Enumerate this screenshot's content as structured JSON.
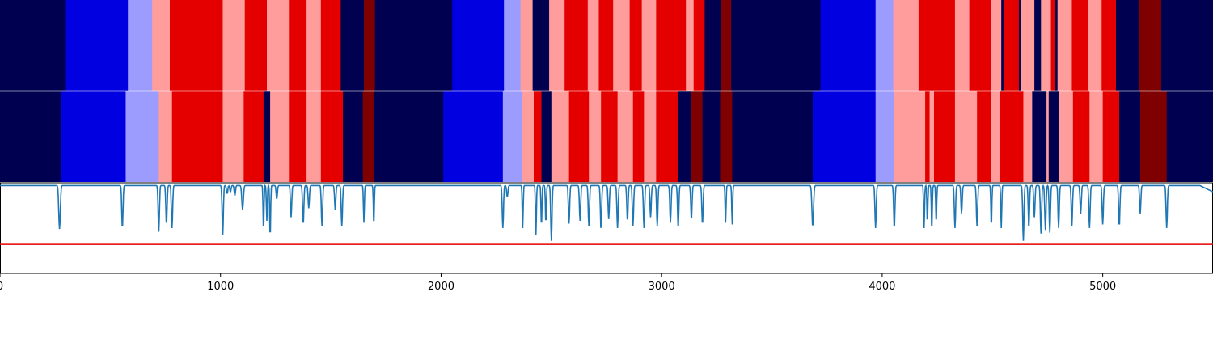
{
  "chart_data": {
    "type": "heatmap",
    "title": "",
    "xlabel": "",
    "ylabel": "",
    "xlim": [
      0,
      5500
    ],
    "xticks": [
      0,
      1000,
      2000,
      3000,
      4000,
      5000
    ],
    "xtick_labels": [
      "0",
      "1000",
      "2000",
      "3000",
      "4000",
      "5000"
    ],
    "grid": false,
    "legend": "none",
    "colors": {
      "navy": "#000050",
      "blue": "#0000e0",
      "lightblue": "#9c9cff",
      "pink": "#ff9c9c",
      "red": "#e50000",
      "darkred": "#7f0000",
      "line": "#1f77b4",
      "threshold": "#e50000"
    },
    "state_rows": [
      {
        "name": "",
        "segments": [
          {
            "start": 0,
            "end": 295,
            "state": "navy"
          },
          {
            "start": 295,
            "end": 580,
            "state": "blue"
          },
          {
            "start": 580,
            "end": 690,
            "state": "lightblue"
          },
          {
            "start": 690,
            "end": 770,
            "state": "pink"
          },
          {
            "start": 770,
            "end": 1010,
            "state": "red"
          },
          {
            "start": 1010,
            "end": 1110,
            "state": "pink"
          },
          {
            "start": 1110,
            "end": 1210,
            "state": "red"
          },
          {
            "start": 1210,
            "end": 1310,
            "state": "pink"
          },
          {
            "start": 1310,
            "end": 1390,
            "state": "red"
          },
          {
            "start": 1390,
            "end": 1455,
            "state": "pink"
          },
          {
            "start": 1455,
            "end": 1545,
            "state": "red"
          },
          {
            "start": 1545,
            "end": 1650,
            "state": "navy"
          },
          {
            "start": 1650,
            "end": 1700,
            "state": "darkred"
          },
          {
            "start": 1700,
            "end": 2050,
            "state": "navy"
          },
          {
            "start": 2050,
            "end": 2285,
            "state": "blue"
          },
          {
            "start": 2285,
            "end": 2360,
            "state": "lightblue"
          },
          {
            "start": 2360,
            "end": 2415,
            "state": "pink"
          },
          {
            "start": 2415,
            "end": 2490,
            "state": "navy"
          },
          {
            "start": 2490,
            "end": 2560,
            "state": "pink"
          },
          {
            "start": 2560,
            "end": 2665,
            "state": "red"
          },
          {
            "start": 2665,
            "end": 2715,
            "state": "pink"
          },
          {
            "start": 2715,
            "end": 2780,
            "state": "red"
          },
          {
            "start": 2780,
            "end": 2855,
            "state": "pink"
          },
          {
            "start": 2855,
            "end": 2910,
            "state": "red"
          },
          {
            "start": 2910,
            "end": 2975,
            "state": "pink"
          },
          {
            "start": 2975,
            "end": 3110,
            "state": "red"
          },
          {
            "start": 3110,
            "end": 3145,
            "state": "pink"
          },
          {
            "start": 3145,
            "end": 3195,
            "state": "red"
          },
          {
            "start": 3195,
            "end": 3270,
            "state": "navy"
          },
          {
            "start": 3270,
            "end": 3315,
            "state": "darkred"
          },
          {
            "start": 3315,
            "end": 3720,
            "state": "navy"
          },
          {
            "start": 3720,
            "end": 3970,
            "state": "blue"
          },
          {
            "start": 3970,
            "end": 4050,
            "state": "lightblue"
          },
          {
            "start": 4050,
            "end": 4165,
            "state": "pink"
          },
          {
            "start": 4165,
            "end": 4330,
            "state": "red"
          },
          {
            "start": 4330,
            "end": 4395,
            "state": "pink"
          },
          {
            "start": 4395,
            "end": 4495,
            "state": "red"
          },
          {
            "start": 4495,
            "end": 4540,
            "state": "pink"
          },
          {
            "start": 4540,
            "end": 4550,
            "state": "navy"
          },
          {
            "start": 4550,
            "end": 4620,
            "state": "red"
          },
          {
            "start": 4620,
            "end": 4630,
            "state": "navy"
          },
          {
            "start": 4630,
            "end": 4690,
            "state": "pink"
          },
          {
            "start": 4690,
            "end": 4720,
            "state": "navy"
          },
          {
            "start": 4720,
            "end": 4765,
            "state": "pink"
          },
          {
            "start": 4765,
            "end": 4785,
            "state": "red"
          },
          {
            "start": 4785,
            "end": 4795,
            "state": "navy"
          },
          {
            "start": 4795,
            "end": 4860,
            "state": "pink"
          },
          {
            "start": 4860,
            "end": 4935,
            "state": "red"
          },
          {
            "start": 4935,
            "end": 4995,
            "state": "pink"
          },
          {
            "start": 4995,
            "end": 5060,
            "state": "red"
          },
          {
            "start": 5060,
            "end": 5165,
            "state": "navy"
          },
          {
            "start": 5165,
            "end": 5265,
            "state": "darkred"
          },
          {
            "start": 5265,
            "end": 5500,
            "state": "navy"
          }
        ]
      },
      {
        "name": "",
        "segments": [
          {
            "start": 0,
            "end": 275,
            "state": "navy"
          },
          {
            "start": 275,
            "end": 570,
            "state": "blue"
          },
          {
            "start": 570,
            "end": 720,
            "state": "lightblue"
          },
          {
            "start": 720,
            "end": 780,
            "state": "pink"
          },
          {
            "start": 780,
            "end": 1010,
            "state": "red"
          },
          {
            "start": 1010,
            "end": 1105,
            "state": "pink"
          },
          {
            "start": 1105,
            "end": 1195,
            "state": "red"
          },
          {
            "start": 1195,
            "end": 1225,
            "state": "navy"
          },
          {
            "start": 1225,
            "end": 1310,
            "state": "pink"
          },
          {
            "start": 1310,
            "end": 1390,
            "state": "red"
          },
          {
            "start": 1390,
            "end": 1455,
            "state": "pink"
          },
          {
            "start": 1455,
            "end": 1555,
            "state": "red"
          },
          {
            "start": 1555,
            "end": 1645,
            "state": "navy"
          },
          {
            "start": 1645,
            "end": 1695,
            "state": "darkred"
          },
          {
            "start": 1695,
            "end": 2010,
            "state": "navy"
          },
          {
            "start": 2010,
            "end": 2280,
            "state": "blue"
          },
          {
            "start": 2280,
            "end": 2365,
            "state": "lightblue"
          },
          {
            "start": 2365,
            "end": 2420,
            "state": "pink"
          },
          {
            "start": 2420,
            "end": 2455,
            "state": "red"
          },
          {
            "start": 2455,
            "end": 2500,
            "state": "navy"
          },
          {
            "start": 2500,
            "end": 2580,
            "state": "pink"
          },
          {
            "start": 2580,
            "end": 2670,
            "state": "red"
          },
          {
            "start": 2670,
            "end": 2725,
            "state": "pink"
          },
          {
            "start": 2725,
            "end": 2800,
            "state": "red"
          },
          {
            "start": 2800,
            "end": 2870,
            "state": "pink"
          },
          {
            "start": 2870,
            "end": 2920,
            "state": "red"
          },
          {
            "start": 2920,
            "end": 2975,
            "state": "pink"
          },
          {
            "start": 2975,
            "end": 3075,
            "state": "red"
          },
          {
            "start": 3075,
            "end": 3135,
            "state": "navy"
          },
          {
            "start": 3135,
            "end": 3185,
            "state": "darkred"
          },
          {
            "start": 3185,
            "end": 3265,
            "state": "navy"
          },
          {
            "start": 3265,
            "end": 3320,
            "state": "darkred"
          },
          {
            "start": 3320,
            "end": 3685,
            "state": "navy"
          },
          {
            "start": 3685,
            "end": 3970,
            "state": "blue"
          },
          {
            "start": 3970,
            "end": 4055,
            "state": "lightblue"
          },
          {
            "start": 4055,
            "end": 4195,
            "state": "pink"
          },
          {
            "start": 4195,
            "end": 4215,
            "state": "red"
          },
          {
            "start": 4215,
            "end": 4235,
            "state": "pink"
          },
          {
            "start": 4235,
            "end": 4330,
            "state": "red"
          },
          {
            "start": 4330,
            "end": 4430,
            "state": "pink"
          },
          {
            "start": 4430,
            "end": 4495,
            "state": "red"
          },
          {
            "start": 4495,
            "end": 4535,
            "state": "pink"
          },
          {
            "start": 4535,
            "end": 4640,
            "state": "red"
          },
          {
            "start": 4640,
            "end": 4680,
            "state": "pink"
          },
          {
            "start": 4680,
            "end": 4745,
            "state": "navy"
          },
          {
            "start": 4745,
            "end": 4755,
            "state": "pink"
          },
          {
            "start": 4755,
            "end": 4800,
            "state": "navy"
          },
          {
            "start": 4800,
            "end": 4865,
            "state": "pink"
          },
          {
            "start": 4865,
            "end": 4940,
            "state": "red"
          },
          {
            "start": 4940,
            "end": 5000,
            "state": "pink"
          },
          {
            "start": 5000,
            "end": 5075,
            "state": "red"
          },
          {
            "start": 5075,
            "end": 5170,
            "state": "navy"
          },
          {
            "start": 5170,
            "end": 5290,
            "state": "darkred"
          },
          {
            "start": 5290,
            "end": 5500,
            "state": "navy"
          }
        ]
      }
    ],
    "line_panel": {
      "ylim": [
        0,
        1
      ],
      "baseline": 0.97,
      "threshold": 0.32,
      "dips": [
        [
          270,
          0.49,
          5
        ],
        [
          555,
          0.5,
          4
        ],
        [
          720,
          0.46,
          4
        ],
        [
          755,
          0.54,
          4
        ],
        [
          780,
          0.5,
          4
        ],
        [
          1010,
          0.42,
          4
        ],
        [
          1030,
          0.88,
          4
        ],
        [
          1045,
          0.9,
          4
        ],
        [
          1065,
          0.86,
          4
        ],
        [
          1100,
          0.7,
          5
        ],
        [
          1195,
          0.48,
          3
        ],
        [
          1210,
          0.58,
          3
        ],
        [
          1225,
          0.4,
          3
        ],
        [
          1255,
          0.82,
          4
        ],
        [
          1320,
          0.62,
          4
        ],
        [
          1375,
          0.54,
          4
        ],
        [
          1400,
          0.72,
          4
        ],
        [
          1460,
          0.52,
          4
        ],
        [
          1520,
          0.7,
          4
        ],
        [
          1550,
          0.52,
          4
        ],
        [
          1650,
          0.56,
          3
        ],
        [
          1695,
          0.54,
          3
        ],
        [
          2280,
          0.5,
          4
        ],
        [
          2300,
          0.84,
          4
        ],
        [
          2370,
          0.5,
          3
        ],
        [
          2430,
          0.42,
          3
        ],
        [
          2455,
          0.52,
          3
        ],
        [
          2475,
          0.55,
          3
        ],
        [
          2500,
          0.36,
          4
        ],
        [
          2580,
          0.55,
          4
        ],
        [
          2630,
          0.58,
          4
        ],
        [
          2670,
          0.52,
          4
        ],
        [
          2725,
          0.48,
          4
        ],
        [
          2760,
          0.6,
          4
        ],
        [
          2800,
          0.5,
          4
        ],
        [
          2845,
          0.58,
          4
        ],
        [
          2870,
          0.52,
          4
        ],
        [
          2920,
          0.5,
          4
        ],
        [
          2950,
          0.62,
          4
        ],
        [
          2980,
          0.52,
          4
        ],
        [
          3040,
          0.56,
          4
        ],
        [
          3075,
          0.5,
          4
        ],
        [
          3135,
          0.6,
          4
        ],
        [
          3185,
          0.54,
          4
        ],
        [
          3290,
          0.56,
          3
        ],
        [
          3320,
          0.54,
          3
        ],
        [
          3685,
          0.52,
          5
        ],
        [
          3970,
          0.5,
          4
        ],
        [
          4055,
          0.5,
          4
        ],
        [
          4190,
          0.5,
          3
        ],
        [
          4205,
          0.56,
          3
        ],
        [
          4225,
          0.48,
          3
        ],
        [
          4245,
          0.56,
          3
        ],
        [
          4330,
          0.5,
          4
        ],
        [
          4360,
          0.66,
          4
        ],
        [
          4430,
          0.52,
          4
        ],
        [
          4495,
          0.52,
          3
        ],
        [
          4540,
          0.5,
          3
        ],
        [
          4640,
          0.36,
          4
        ],
        [
          4665,
          0.5,
          4
        ],
        [
          4690,
          0.62,
          4
        ],
        [
          4720,
          0.44,
          4
        ],
        [
          4740,
          0.48,
          4
        ],
        [
          4760,
          0.45,
          4
        ],
        [
          4800,
          0.5,
          4
        ],
        [
          4860,
          0.52,
          4
        ],
        [
          4900,
          0.66,
          4
        ],
        [
          4940,
          0.5,
          4
        ],
        [
          5000,
          0.54,
          4
        ],
        [
          5075,
          0.52,
          4
        ],
        [
          5170,
          0.66,
          4
        ],
        [
          5290,
          0.5,
          4
        ]
      ],
      "slopes": [
        [
          5440,
          5500,
          0.97,
          0.9
        ]
      ]
    }
  }
}
